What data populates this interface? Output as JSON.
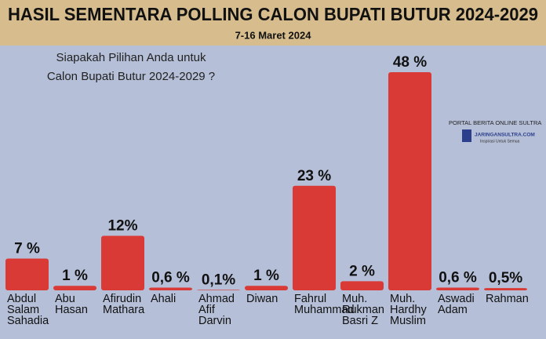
{
  "chart_data": {
    "type": "bar",
    "title": "HASIL SEMENTARA POLLING CALON BUPATI BUTUR 2024-2029",
    "subtitle": "7-16 Maret 2024",
    "question": "Siapakah Pilihan Anda untuk\nCalon Bupati Butur 2024-2029 ?",
    "categories": [
      "Abdul\nSalam\nSahadia",
      "Abu\nHasan",
      "Afirudin\nMathara",
      "Ahali",
      "Ahmad\nAfif\nDarvin",
      "Diwan",
      "Fahrul\nMuhammad",
      "Muh.\nRukman\nBasri Z",
      "Muh.\nHardhy\nMuslim",
      "Aswadi\nAdam",
      "Rahman"
    ],
    "values": [
      7,
      1,
      12,
      0.6,
      0.1,
      1,
      23,
      2,
      48,
      0.6,
      0.5
    ],
    "value_labels": [
      "7 %",
      "1 %",
      "12%",
      "0,6 %",
      "0,1%",
      "1 %",
      "23 %",
      "2 %",
      "48 %",
      "0,6 %",
      "0,5%"
    ],
    "color": "#d93a35",
    "source": [
      "PORTAL BERITA ONLINE SULTRA",
      "JARINGANSULTRA.COM",
      "Inspirasi Untuk Semua"
    ]
  }
}
